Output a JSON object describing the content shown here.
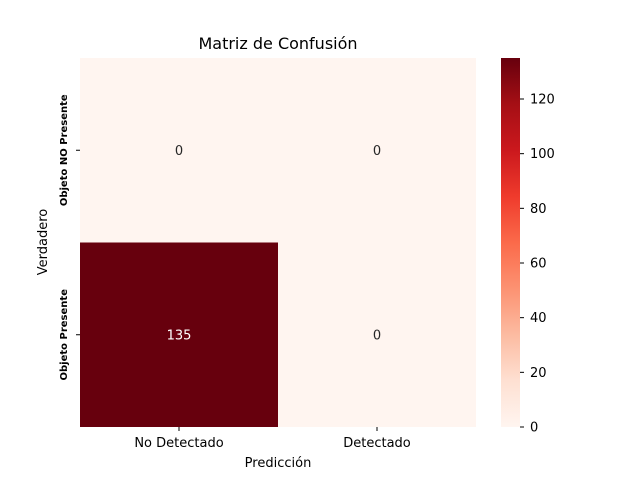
{
  "chart_data": {
    "type": "heatmap",
    "title": "Matriz de Confusión",
    "xlabel": "Predicción",
    "ylabel": "Verdadero",
    "x_categories": [
      "No Detectado",
      "Detectado"
    ],
    "y_categories": [
      "Objeto NO Presente",
      "Objeto Presente"
    ],
    "values": [
      [
        0,
        0
      ],
      [
        135,
        0
      ]
    ],
    "colorbar": {
      "min": 0,
      "max": 135,
      "ticks": [
        0,
        20,
        40,
        60,
        80,
        100,
        120
      ]
    },
    "colormap": "Reds",
    "colors": {
      "low": "#fff5f0",
      "mid": "#fb6a4a",
      "high": "#67000d"
    }
  }
}
